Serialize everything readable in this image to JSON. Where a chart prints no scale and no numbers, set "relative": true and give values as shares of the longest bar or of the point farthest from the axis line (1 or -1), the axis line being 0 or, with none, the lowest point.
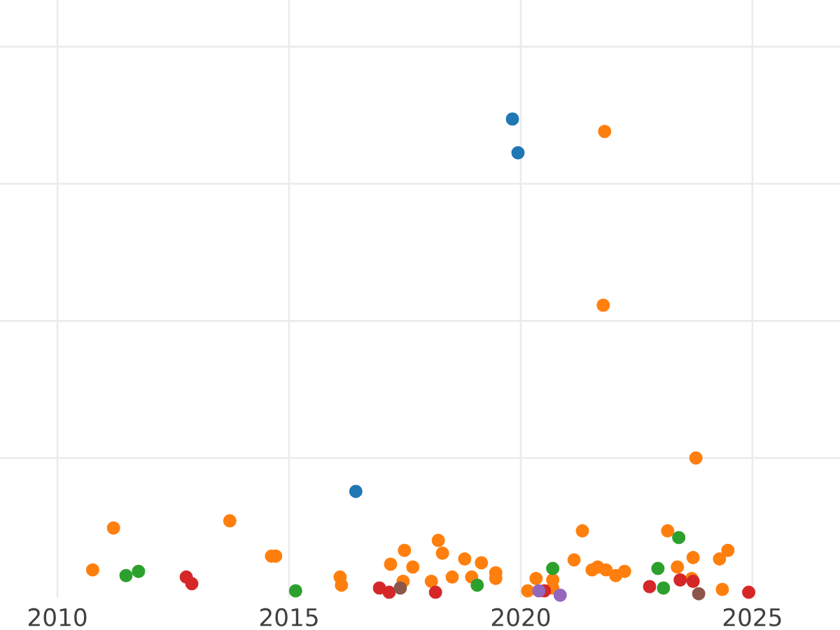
{
  "chart_data": {
    "type": "scatter",
    "relative": true,
    "grid": true,
    "xlim": [
      2008.76,
      2026.89
    ],
    "xticks": [
      2010,
      2015,
      2020,
      2025
    ],
    "series": [
      {
        "color": "#1f77b4",
        "x": [
          2019.82,
          2019.94,
          2016.44
        ],
        "values": [
          1.0,
          0.929,
          0.218
        ]
      },
      {
        "color": "#ff7f0e",
        "x": [
          2021.81,
          2021.78,
          2023.78,
          2010.76,
          2011.21,
          2013.72,
          2014.62,
          2014.71,
          2016.1,
          2016.13,
          2017.19,
          2017.49,
          2017.67,
          2017.46,
          2018.07,
          2018.22,
          2018.31,
          2018.52,
          2018.79,
          2018.94,
          2019.15,
          2019.46,
          2019.46,
          2020.15,
          2020.33,
          2020.69,
          2020.69,
          2021.15,
          2021.33,
          2021.54,
          2021.66,
          2021.84,
          2022.05,
          2022.24,
          2023.17,
          2023.38,
          2023.72,
          2023.69,
          2024.29,
          2024.47,
          2024.35
        ],
        "values": [
          0.974,
          0.609,
          0.288,
          0.053,
          0.141,
          0.156,
          0.082,
          0.082,
          0.038,
          0.021,
          0.065,
          0.094,
          0.059,
          0.029,
          0.029,
          0.115,
          0.088,
          0.038,
          0.076,
          0.038,
          0.068,
          0.047,
          0.035,
          0.009,
          0.035,
          0.032,
          0.015,
          0.074,
          0.135,
          0.053,
          0.059,
          0.053,
          0.041,
          0.05,
          0.135,
          0.059,
          0.079,
          0.035,
          0.076,
          0.094,
          0.012
        ]
      },
      {
        "color": "#2ca02c",
        "x": [
          2011.48,
          2011.75,
          2015.14,
          2019.06,
          2020.69,
          2022.96,
          2023.08,
          2023.41
        ],
        "values": [
          0.041,
          0.05,
          0.009,
          0.021,
          0.056,
          0.056,
          0.015,
          0.121
        ]
      },
      {
        "color": "#d62728",
        "x": [
          2012.78,
          2012.9,
          2016.95,
          2017.16,
          2018.16,
          2020.51,
          2022.78,
          2023.44,
          2023.72,
          2024.92
        ],
        "values": [
          0.038,
          0.024,
          0.015,
          0.006,
          0.006,
          0.009,
          0.018,
          0.032,
          0.029,
          0.006
        ]
      },
      {
        "color": "#9467bd",
        "x": [
          2020.39,
          2020.85
        ],
        "values": [
          0.009,
          0.0
        ]
      },
      {
        "color": "#8c564b",
        "x": [
          2017.4,
          2023.84
        ],
        "values": [
          0.015,
          0.003
        ]
      }
    ]
  }
}
